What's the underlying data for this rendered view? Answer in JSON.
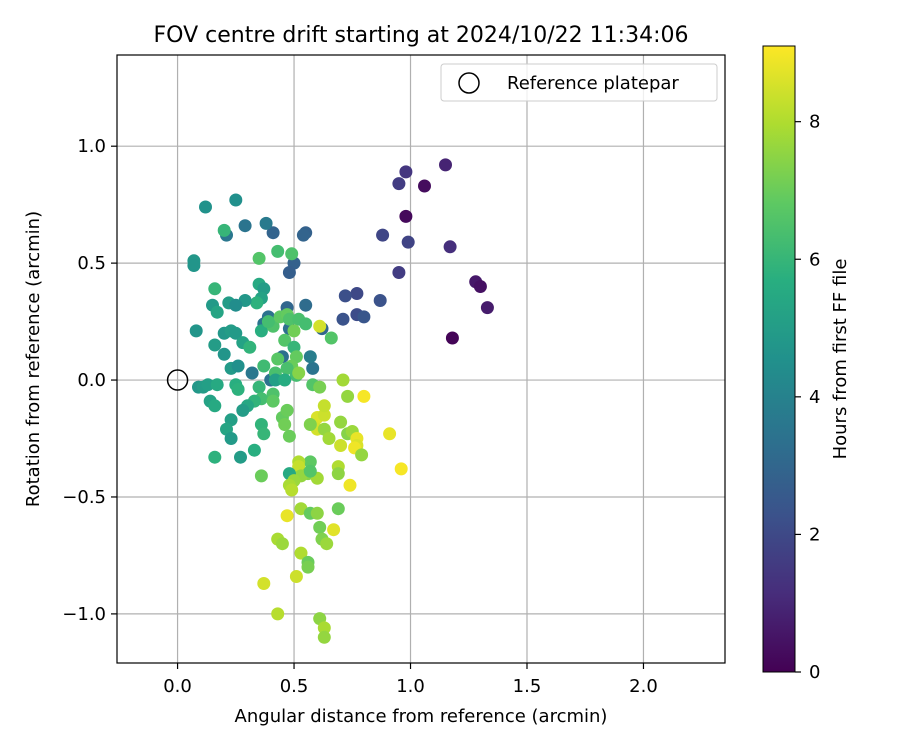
{
  "chart_data": {
    "type": "scatter",
    "title": "FOV centre drift starting at 2024/10/22 11:34:06",
    "xlabel": "Angular distance from reference (arcmin)",
    "ylabel": "Rotation from reference (arcmin)",
    "xlim": [
      -0.26,
      2.35
    ],
    "ylim": [
      -1.21,
      1.39
    ],
    "xticks": [
      0.0,
      0.5,
      1.0,
      1.5,
      2.0
    ],
    "xtick_labels": [
      "0.0",
      "0.5",
      "1.0",
      "1.5",
      "2.0"
    ],
    "yticks": [
      -1.0,
      -0.5,
      0.0,
      0.5,
      1.0
    ],
    "ytick_labels": [
      "−1.0",
      "−0.5",
      "0.0",
      "0.5",
      "1.0"
    ],
    "grid": true,
    "legend": {
      "placement": "top-right",
      "entries": [
        {
          "label": "Reference platepar",
          "marker": "open-circle"
        }
      ]
    },
    "reference_point": {
      "x": 0.0,
      "y": 0.0
    },
    "colorbar": {
      "label": "Hours from first FF file",
      "range": [
        0,
        9.1
      ],
      "ticks": [
        0,
        2,
        4,
        6,
        8
      ],
      "tick_labels": [
        "0",
        "2",
        "4",
        "6",
        "8"
      ],
      "colormap": "viridis"
    },
    "series": [
      {
        "marker": "filled-circle",
        "points": [
          [
            1.15,
            0.92,
            0.9
          ],
          [
            0.98,
            0.89,
            1.4
          ],
          [
            1.06,
            0.83,
            0.3
          ],
          [
            0.95,
            0.84,
            1.6
          ],
          [
            0.98,
            0.7,
            0.2
          ],
          [
            0.88,
            0.62,
            1.9
          ],
          [
            0.99,
            0.59,
            1.8
          ],
          [
            1.17,
            0.57,
            1.2
          ],
          [
            0.95,
            0.46,
            1.6
          ],
          [
            1.28,
            0.42,
            0.6
          ],
          [
            1.3,
            0.4,
            0.4
          ],
          [
            1.33,
            0.31,
            0.7
          ],
          [
            1.18,
            0.18,
            0.1
          ],
          [
            0.77,
            0.37,
            2.0
          ],
          [
            0.72,
            0.36,
            2.2
          ],
          [
            0.87,
            0.34,
            2.3
          ],
          [
            0.77,
            0.28,
            2.1
          ],
          [
            0.8,
            0.27,
            2.4
          ],
          [
            0.71,
            0.26,
            2.3
          ],
          [
            0.55,
            0.63,
            2.8
          ],
          [
            0.54,
            0.62,
            2.9
          ],
          [
            0.41,
            0.63,
            2.9
          ],
          [
            0.29,
            0.66,
            3.5
          ],
          [
            0.38,
            0.67,
            3.7
          ],
          [
            0.25,
            0.77,
            4.5
          ],
          [
            0.12,
            0.74,
            4.6
          ],
          [
            0.21,
            0.62,
            3.6
          ],
          [
            0.5,
            0.5,
            2.8
          ],
          [
            0.48,
            0.46,
            2.7
          ],
          [
            0.47,
            0.31,
            3.0
          ],
          [
            0.55,
            0.32,
            3.2
          ],
          [
            0.62,
            0.22,
            3.0
          ],
          [
            0.48,
            0.22,
            3.3
          ],
          [
            0.37,
            0.24,
            3.5
          ],
          [
            0.39,
            0.27,
            3.4
          ],
          [
            0.45,
            0.1,
            3.3
          ],
          [
            0.4,
            0.0,
            3.4
          ],
          [
            0.32,
            0.03,
            3.6
          ],
          [
            0.58,
            0.05,
            3.5
          ],
          [
            0.57,
            0.1,
            3.8
          ],
          [
            0.07,
            0.51,
            4.8
          ],
          [
            0.07,
            0.49,
            4.7
          ],
          [
            0.2,
            0.64,
            6.0
          ],
          [
            0.35,
            0.52,
            6.6
          ],
          [
            0.43,
            0.55,
            6.3
          ],
          [
            0.49,
            0.54,
            6.5
          ],
          [
            0.35,
            0.41,
            5.5
          ],
          [
            0.37,
            0.39,
            5.0
          ],
          [
            0.36,
            0.35,
            5.2
          ],
          [
            0.34,
            0.33,
            5.8
          ],
          [
            0.29,
            0.34,
            4.8
          ],
          [
            0.22,
            0.33,
            5.0
          ],
          [
            0.25,
            0.32,
            4.4
          ],
          [
            0.15,
            0.32,
            4.9
          ],
          [
            0.16,
            0.39,
            6.0
          ],
          [
            0.17,
            0.29,
            5.3
          ],
          [
            0.2,
            0.2,
            4.8
          ],
          [
            0.23,
            0.21,
            5.0
          ],
          [
            0.25,
            0.2,
            4.9
          ],
          [
            0.08,
            0.21,
            4.7
          ],
          [
            0.28,
            0.16,
            5.2
          ],
          [
            0.16,
            0.15,
            5.0
          ],
          [
            0.2,
            0.11,
            4.7
          ],
          [
            0.23,
            0.05,
            4.9
          ],
          [
            0.26,
            0.06,
            4.5
          ],
          [
            0.31,
            0.14,
            5.9
          ],
          [
            0.36,
            0.21,
            5.7
          ],
          [
            0.41,
            0.23,
            6.5
          ],
          [
            0.39,
            0.25,
            6.3
          ],
          [
            0.44,
            0.27,
            6.8
          ],
          [
            0.47,
            0.28,
            6.9
          ],
          [
            0.48,
            0.26,
            6.5
          ],
          [
            0.52,
            0.26,
            6.4
          ],
          [
            0.55,
            0.24,
            6.3
          ],
          [
            0.61,
            0.23,
            8.5
          ],
          [
            0.66,
            0.18,
            6.6
          ],
          [
            0.5,
            0.21,
            7.1
          ],
          [
            0.46,
            0.17,
            6.6
          ],
          [
            0.43,
            0.09,
            6.7
          ],
          [
            0.5,
            0.14,
            6.0
          ],
          [
            0.51,
            0.1,
            6.9
          ],
          [
            0.49,
            0.06,
            7.0
          ],
          [
            0.47,
            0.05,
            6.4
          ],
          [
            0.51,
            0.02,
            6.3
          ],
          [
            0.42,
            0.03,
            6.4
          ],
          [
            0.37,
            0.06,
            6.2
          ],
          [
            0.42,
            0.0,
            5.1
          ],
          [
            0.46,
            0.0,
            5.6
          ],
          [
            0.52,
            0.03,
            7.4
          ],
          [
            0.09,
            -0.03,
            4.8
          ],
          [
            0.11,
            -0.03,
            5.0
          ],
          [
            0.13,
            -0.02,
            5.1
          ],
          [
            0.17,
            -0.02,
            5.5
          ],
          [
            0.25,
            -0.02,
            5.7
          ],
          [
            0.26,
            -0.04,
            5.8
          ],
          [
            0.35,
            -0.03,
            6.0
          ],
          [
            0.41,
            -0.06,
            6.5
          ],
          [
            0.36,
            -0.08,
            6.3
          ],
          [
            0.33,
            -0.09,
            5.9
          ],
          [
            0.3,
            -0.11,
            5.4
          ],
          [
            0.28,
            -0.13,
            5.0
          ],
          [
            0.14,
            -0.09,
            5.2
          ],
          [
            0.16,
            -0.11,
            5.5
          ],
          [
            0.23,
            -0.17,
            5.1
          ],
          [
            0.21,
            -0.21,
            5.3
          ],
          [
            0.23,
            -0.25,
            4.9
          ],
          [
            0.16,
            -0.33,
            5.8
          ],
          [
            0.27,
            -0.33,
            5.0
          ],
          [
            0.33,
            -0.3,
            5.7
          ],
          [
            0.36,
            -0.19,
            5.9
          ],
          [
            0.37,
            -0.23,
            6.0
          ],
          [
            0.36,
            -0.41,
            7.0
          ],
          [
            0.41,
            -0.09,
            6.8
          ],
          [
            0.45,
            -0.16,
            6.9
          ],
          [
            0.47,
            -0.13,
            7.0
          ],
          [
            0.46,
            -0.19,
            7.1
          ],
          [
            0.48,
            -0.24,
            7.0
          ],
          [
            0.58,
            -0.02,
            6.6
          ],
          [
            0.61,
            -0.03,
            7.2
          ],
          [
            0.6,
            -0.16,
            8.6
          ],
          [
            0.63,
            -0.15,
            8.4
          ],
          [
            0.63,
            -0.11,
            8.3
          ],
          [
            0.6,
            -0.21,
            8.5
          ],
          [
            0.57,
            -0.19,
            7.3
          ],
          [
            0.7,
            -0.18,
            7.6
          ],
          [
            0.71,
            0.0,
            7.8
          ],
          [
            0.73,
            -0.07,
            7.6
          ],
          [
            0.8,
            -0.07,
            9.0
          ],
          [
            0.63,
            -0.21,
            7.6
          ],
          [
            0.65,
            -0.25,
            7.8
          ],
          [
            0.73,
            -0.23,
            7.4
          ],
          [
            0.75,
            -0.22,
            7.7
          ],
          [
            0.77,
            -0.25,
            8.8
          ],
          [
            0.77,
            -0.28,
            8.6
          ],
          [
            0.76,
            -0.29,
            8.9
          ],
          [
            0.7,
            -0.28,
            8.4
          ],
          [
            0.79,
            -0.32,
            7.6
          ],
          [
            0.91,
            -0.23,
            8.8
          ],
          [
            0.96,
            -0.38,
            9.0
          ],
          [
            0.57,
            -0.35,
            6.8
          ],
          [
            0.52,
            -0.35,
            8.0
          ],
          [
            0.52,
            -0.37,
            8.3
          ],
          [
            0.56,
            -0.4,
            7.4
          ],
          [
            0.53,
            -0.41,
            7.6
          ],
          [
            0.48,
            -0.4,
            5.5
          ],
          [
            0.5,
            -0.43,
            7.7
          ],
          [
            0.48,
            -0.45,
            7.9
          ],
          [
            0.49,
            -0.47,
            8.1
          ],
          [
            0.6,
            -0.42,
            7.8
          ],
          [
            0.69,
            -0.37,
            8.0
          ],
          [
            0.69,
            -0.4,
            7.5
          ],
          [
            0.74,
            -0.45,
            8.9
          ],
          [
            0.69,
            -0.55,
            7.0
          ],
          [
            0.53,
            -0.55,
            7.8
          ],
          [
            0.57,
            -0.57,
            6.9
          ],
          [
            0.6,
            -0.57,
            7.5
          ],
          [
            0.47,
            -0.58,
            8.8
          ],
          [
            0.61,
            -0.63,
            7.1
          ],
          [
            0.67,
            -0.64,
            8.7
          ],
          [
            0.62,
            -0.68,
            7.3
          ],
          [
            0.64,
            -0.7,
            7.7
          ],
          [
            0.43,
            -0.68,
            7.9
          ],
          [
            0.45,
            -0.7,
            7.7
          ],
          [
            0.53,
            -0.74,
            8.0
          ],
          [
            0.56,
            -0.78,
            7.0
          ],
          [
            0.56,
            -0.8,
            7.2
          ],
          [
            0.51,
            -0.84,
            8.4
          ],
          [
            0.37,
            -0.87,
            8.5
          ],
          [
            0.43,
            -1.0,
            8.1
          ],
          [
            0.61,
            -1.02,
            7.5
          ],
          [
            0.63,
            -1.06,
            7.9
          ],
          [
            0.63,
            -1.1,
            7.6
          ],
          [
            0.57,
            -0.39,
            6.6
          ]
        ]
      }
    ]
  }
}
